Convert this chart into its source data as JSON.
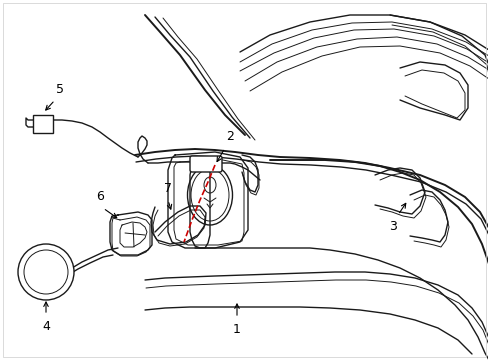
{
  "background_color": "#ffffff",
  "line_color": "#1a1a1a",
  "red_color": "#cc0000",
  "figsize": [
    4.89,
    3.6
  ],
  "dpi": 100,
  "label_color": "#000000",
  "border_color": "#cccccc"
}
